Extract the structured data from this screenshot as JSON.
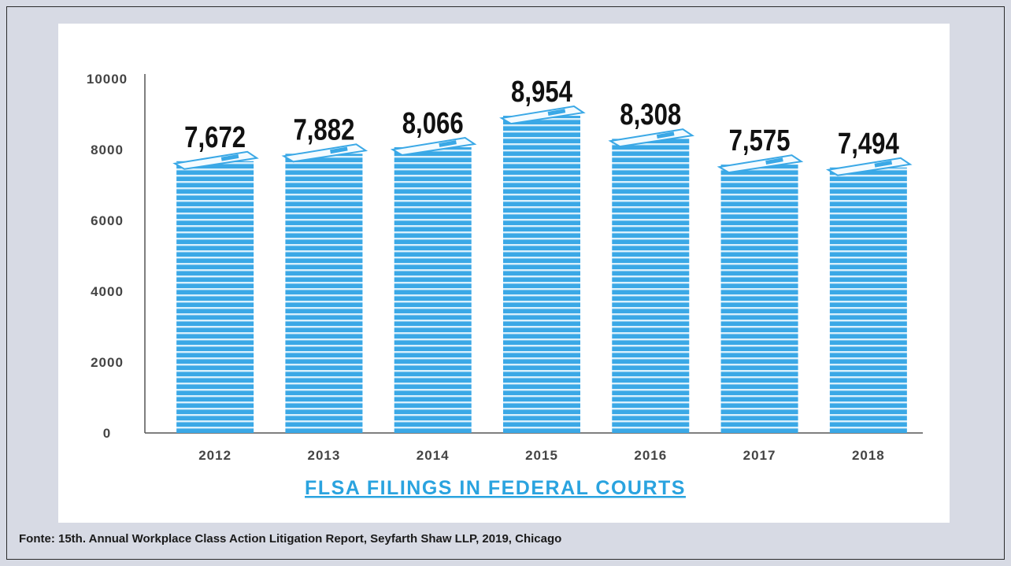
{
  "chart_data": {
    "type": "bar",
    "title": "FLSA FILINGS IN FEDERAL COURTS",
    "categories": [
      "2012",
      "2013",
      "2014",
      "2015",
      "2016",
      "2017",
      "2018"
    ],
    "values": [
      7672,
      7882,
      8066,
      8954,
      8308,
      7575,
      7494
    ],
    "value_labels": [
      "7,672",
      "7,882",
      "8,066",
      "8,954",
      "8,308",
      "7,575",
      "7,494"
    ],
    "yticks": [
      "0",
      "2000",
      "4000",
      "6000",
      "8000",
      "10000"
    ],
    "ylim": [
      0,
      10000
    ],
    "grid": false,
    "bar_color": "#3aa8e6",
    "title_color": "#2aa3df"
  },
  "footer": {
    "source": "Fonte: 15th. Annual Workplace Class Action Litigation Report, Seyfarth Shaw LLP, 2019, Chicago"
  }
}
